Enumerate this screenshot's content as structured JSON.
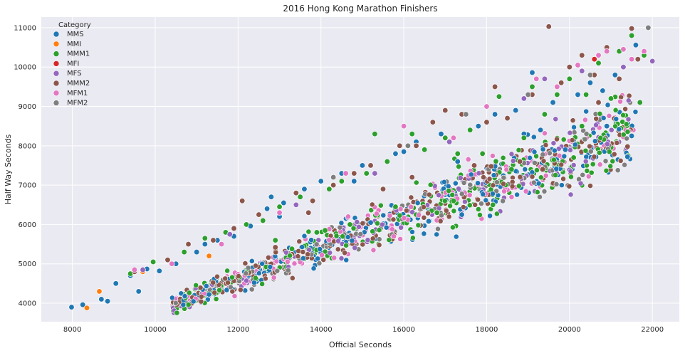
{
  "chart_data": {
    "type": "scatter",
    "title": "2016 Hong Kong Marathon Finishers",
    "xlabel": "Official Seconds",
    "ylabel": "Half Way Seconds",
    "xlim": [
      7250,
      22650
    ],
    "ylim": [
      3530,
      11270
    ],
    "xticks": [
      8000,
      10000,
      12000,
      14000,
      16000,
      18000,
      20000,
      22000
    ],
    "yticks": [
      4000,
      5000,
      6000,
      7000,
      8000,
      9000,
      10000,
      11000
    ],
    "grid": true,
    "legend": {
      "title": "Category",
      "placement": "top-left",
      "entries": [
        "MMS",
        "MMI",
        "MMM1",
        "MFI",
        "MFS",
        "MMM2",
        "MFM1",
        "MFM2"
      ]
    },
    "colors": {
      "MMS": "#1f77b4",
      "MMI": "#ff7f0e",
      "MMM1": "#2ca02c",
      "MFI": "#d62728",
      "MFS": "#9467bd",
      "MMM2": "#8c564b",
      "MFM1": "#e377c2",
      "MFM2": "#7f7f7f"
    },
    "series": [
      {
        "name": "MMS",
        "points": [
          [
            7980,
            3900
          ],
          [
            8250,
            3960
          ],
          [
            8700,
            4100
          ],
          [
            8850,
            4050
          ],
          [
            9050,
            4500
          ],
          [
            9400,
            4700
          ],
          [
            9600,
            4300
          ],
          [
            9800,
            4870
          ],
          [
            10100,
            4820
          ],
          [
            10500,
            5000
          ],
          [
            11000,
            5300
          ],
          [
            11500,
            5600
          ],
          [
            11900,
            5700
          ],
          [
            12300,
            5960
          ],
          [
            12700,
            6400
          ],
          [
            13100,
            6550
          ],
          [
            13600,
            6900
          ],
          [
            14000,
            7100
          ],
          [
            14500,
            7300
          ],
          [
            15000,
            7500
          ],
          [
            15200,
            6050
          ],
          [
            15800,
            7800
          ],
          [
            16300,
            8100
          ],
          [
            16600,
            6080
          ],
          [
            16900,
            8300
          ],
          [
            17300,
            7600
          ],
          [
            17400,
            6250
          ],
          [
            17800,
            8500
          ],
          [
            18200,
            8800
          ],
          [
            18700,
            8900
          ],
          [
            19100,
            9860
          ],
          [
            19300,
            8400
          ],
          [
            19600,
            9100
          ],
          [
            19900,
            7900
          ],
          [
            20200,
            9300
          ],
          [
            20500,
            9600
          ],
          [
            20800,
            9400
          ],
          [
            21100,
            9800
          ],
          [
            21400,
            7720
          ],
          [
            21600,
            10560
          ],
          [
            21500,
            8250
          ],
          [
            20900,
            8500
          ],
          [
            18900,
            8300
          ],
          [
            16000,
            7850
          ],
          [
            14800,
            7100
          ],
          [
            12800,
            6700
          ],
          [
            11200,
            5500
          ],
          [
            13000,
            6200
          ]
        ]
      },
      {
        "name": "MMI",
        "points": [
          [
            8350,
            3880
          ],
          [
            8650,
            4300
          ],
          [
            9700,
            4800
          ],
          [
            11300,
            5200
          ]
        ]
      },
      {
        "name": "MMM1",
        "points": [
          [
            9400,
            4750
          ],
          [
            9950,
            5050
          ],
          [
            10700,
            5300
          ],
          [
            11200,
            5650
          ],
          [
            11700,
            5800
          ],
          [
            12200,
            6000
          ],
          [
            12600,
            6100
          ],
          [
            13000,
            6450
          ],
          [
            13300,
            5380
          ],
          [
            13500,
            6700
          ],
          [
            13900,
            5800
          ],
          [
            14200,
            6900
          ],
          [
            14500,
            7100
          ],
          [
            14700,
            6000
          ],
          [
            15100,
            7300
          ],
          [
            15300,
            8300
          ],
          [
            15600,
            7600
          ],
          [
            15800,
            6450
          ],
          [
            16200,
            8300
          ],
          [
            16500,
            7900
          ],
          [
            16800,
            6300
          ],
          [
            17000,
            8200
          ],
          [
            17300,
            7800
          ],
          [
            17600,
            8400
          ],
          [
            17900,
            7800
          ],
          [
            18150,
            6500
          ],
          [
            18300,
            9250
          ],
          [
            18600,
            7400
          ],
          [
            18900,
            8200
          ],
          [
            19100,
            9500
          ],
          [
            19400,
            8800
          ],
          [
            19700,
            9300
          ],
          [
            20000,
            9700
          ],
          [
            20100,
            7700
          ],
          [
            20400,
            9300
          ],
          [
            20700,
            10100
          ],
          [
            21000,
            9200
          ],
          [
            21200,
            10400
          ],
          [
            21500,
            10800
          ],
          [
            21700,
            9100
          ],
          [
            21800,
            10300
          ],
          [
            20300,
            8500
          ],
          [
            17200,
            6600
          ],
          [
            14100,
            5850
          ],
          [
            12900,
            5600
          ]
        ]
      },
      {
        "name": "MFI",
        "points": [
          [
            20600,
            10200
          ]
        ]
      },
      {
        "name": "MFS",
        "points": [
          [
            9700,
            4850
          ],
          [
            11800,
            5750
          ],
          [
            13400,
            6500
          ],
          [
            15300,
            7300
          ],
          [
            17100,
            8100
          ],
          [
            18900,
            9200
          ],
          [
            19400,
            9700
          ],
          [
            20300,
            9900
          ],
          [
            21300,
            10000
          ],
          [
            22000,
            10150
          ]
        ]
      },
      {
        "name": "MMM2",
        "points": [
          [
            9500,
            4800
          ],
          [
            10300,
            5100
          ],
          [
            10800,
            5500
          ],
          [
            11400,
            5600
          ],
          [
            11900,
            5900
          ],
          [
            12100,
            6600
          ],
          [
            12500,
            6250
          ],
          [
            12900,
            5420
          ],
          [
            13400,
            6800
          ],
          [
            13800,
            6600
          ],
          [
            14300,
            7000
          ],
          [
            14800,
            7300
          ],
          [
            15200,
            7500
          ],
          [
            15500,
            6900
          ],
          [
            15900,
            8000
          ],
          [
            16300,
            8000
          ],
          [
            16700,
            8600
          ],
          [
            17000,
            8900
          ],
          [
            17400,
            8800
          ],
          [
            17700,
            7500
          ],
          [
            18000,
            8600
          ],
          [
            18200,
            9500
          ],
          [
            18500,
            8700
          ],
          [
            18800,
            7600
          ],
          [
            19100,
            9300
          ],
          [
            19350,
            7400
          ],
          [
            19500,
            11030
          ],
          [
            19800,
            9600
          ],
          [
            20000,
            10000
          ],
          [
            20300,
            10300
          ],
          [
            20600,
            9800
          ],
          [
            20900,
            10500
          ],
          [
            21200,
            9700
          ],
          [
            21500,
            10980
          ],
          [
            21400,
            7980
          ],
          [
            21650,
            10200
          ],
          [
            20700,
            9100
          ],
          [
            16200,
            7200
          ],
          [
            13700,
            6300
          ]
        ]
      },
      {
        "name": "MFM1",
        "points": [
          [
            9500,
            4850
          ],
          [
            10400,
            5000
          ],
          [
            11600,
            5500
          ],
          [
            13000,
            6300
          ],
          [
            14600,
            7300
          ],
          [
            16000,
            8500
          ],
          [
            17200,
            8200
          ],
          [
            18000,
            9000
          ],
          [
            19200,
            9700
          ],
          [
            19700,
            9500
          ],
          [
            20200,
            10050
          ],
          [
            20700,
            10300
          ],
          [
            20900,
            10400
          ],
          [
            21300,
            10450
          ],
          [
            21800,
            10400
          ],
          [
            21500,
            10200
          ]
        ]
      },
      {
        "name": "MFM2",
        "points": [
          [
            21900,
            11000
          ],
          [
            20500,
            9800
          ],
          [
            19000,
            9300
          ],
          [
            17500,
            8800
          ],
          [
            16100,
            8000
          ],
          [
            14300,
            7200
          ]
        ]
      }
    ],
    "cloud_note_free": true
  }
}
